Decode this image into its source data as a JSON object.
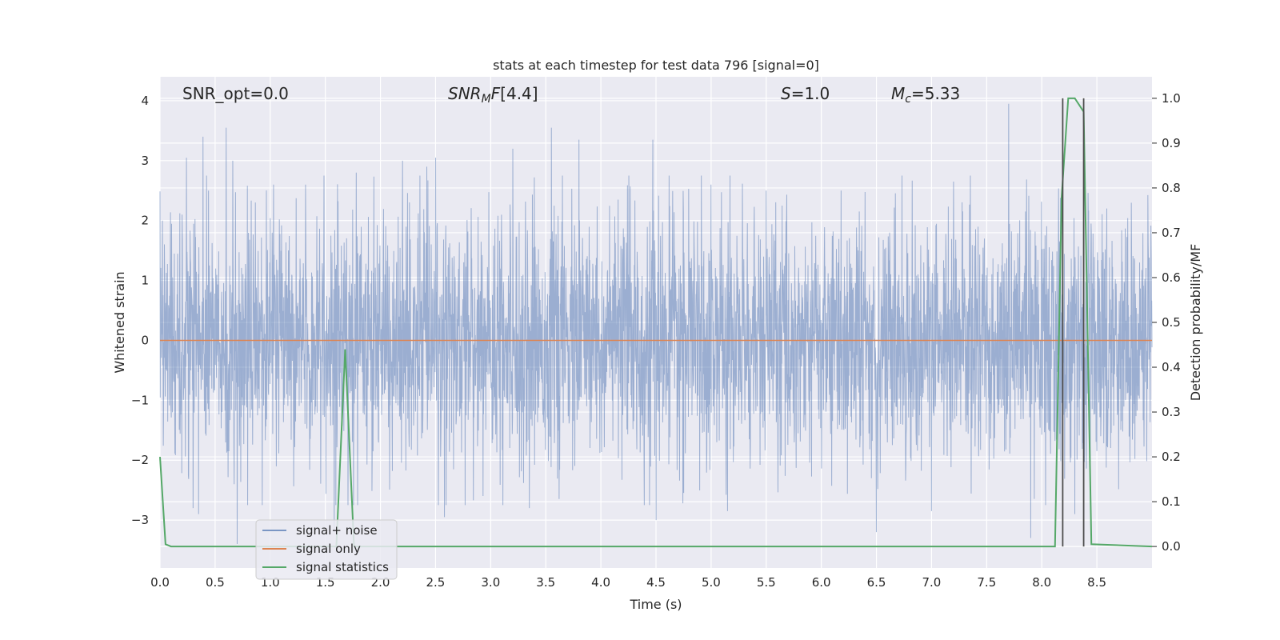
{
  "chart_data": {
    "type": "line",
    "title": "stats at each timestep for test data 796 [signal=0]",
    "xlabel": "Time (s)",
    "ylabel": "Whitened strain",
    "ylabel_right": "Detection probability/MF",
    "xlim": [
      0.0,
      9.0
    ],
    "ylim": [
      -3.8,
      4.4
    ],
    "ylim_right": [
      -0.048,
      1.048
    ],
    "xticks": [
      "0.0",
      "0.5",
      "1.0",
      "1.5",
      "2.0",
      "2.5",
      "3.0",
      "3.5",
      "4.0",
      "4.5",
      "5.0",
      "5.5",
      "6.0",
      "6.5",
      "7.0",
      "7.5",
      "8.0",
      "8.5"
    ],
    "yticks": [
      "−3",
      "−2",
      "−1",
      "0",
      "1",
      "2",
      "3",
      "4"
    ],
    "yticks_right": [
      "0.0",
      "0.1",
      "0.2",
      "0.3",
      "0.4",
      "0.5",
      "0.6",
      "0.7",
      "0.8",
      "0.9",
      "1.0"
    ],
    "grid": true,
    "legend_position": "lower-left",
    "annotations": {
      "snr_opt": "SNR_opt=0.0",
      "snr_mf": "[4.4]",
      "s_value": "=1.0",
      "mc_value": "=5.33"
    },
    "series": [
      {
        "name": "signal+ noise",
        "color": "#4c72b0",
        "opacity": 0.5,
        "description": "dense whitened noise approx. N(0,1) sampled over 0 to 9 s",
        "spikes": [
          [
            0.2,
            2.1
          ],
          [
            0.24,
            3.05
          ],
          [
            0.3,
            3.05
          ],
          [
            0.35,
            2.5
          ],
          [
            0.39,
            3.4
          ],
          [
            0.44,
            2.5
          ],
          [
            0.6,
            3.55
          ],
          [
            0.66,
            3.0
          ],
          [
            1.03,
            2.6
          ],
          [
            1.32,
            2.6
          ],
          [
            1.78,
            2.8
          ],
          [
            2.2,
            3.0
          ],
          [
            2.42,
            2.9
          ],
          [
            2.5,
            3.05
          ],
          [
            3.2,
            3.2
          ],
          [
            3.55,
            3.55
          ],
          [
            3.8,
            3.35
          ],
          [
            4.47,
            3.35
          ],
          [
            5.0,
            2.6
          ],
          [
            5.5,
            2.5
          ],
          [
            6.18,
            2.5
          ],
          [
            7.2,
            2.65
          ],
          [
            7.7,
            3.3
          ],
          [
            7.7,
            3.95
          ],
          [
            0.3,
            -2.8
          ],
          [
            0.35,
            -2.9
          ],
          [
            0.7,
            -3.4
          ],
          [
            1.58,
            -3.2
          ],
          [
            2.58,
            -2.95
          ],
          [
            3.35,
            -2.8
          ],
          [
            4.5,
            -3.0
          ],
          [
            5.15,
            -2.85
          ],
          [
            6.5,
            -3.2
          ],
          [
            7.0,
            -2.85
          ],
          [
            7.9,
            -3.3
          ],
          [
            8.3,
            -2.9
          ]
        ]
      },
      {
        "name": "signal only",
        "color": "#dd8452",
        "x": [
          0.0,
          9.0
        ],
        "y": [
          0.0,
          0.0
        ]
      },
      {
        "name": "signal statistics",
        "color": "#55a868",
        "axis": "right",
        "x": [
          0.0,
          0.05,
          0.1,
          1.6,
          1.68,
          1.76,
          8.12,
          8.18,
          8.24,
          8.3,
          8.38,
          8.45,
          9.0
        ],
        "y": [
          0.2,
          0.005,
          0.0,
          0.0,
          0.44,
          0.0,
          0.0,
          0.78,
          1.0,
          1.0,
          0.97,
          0.005,
          0.0
        ]
      }
    ],
    "vlines": [
      {
        "x": 8.19,
        "y": [
          0.0,
          1.0
        ],
        "color": "#4d4d4d"
      },
      {
        "x": 8.38,
        "y": [
          0.0,
          1.0
        ],
        "color": "#4d4d4d"
      }
    ]
  }
}
